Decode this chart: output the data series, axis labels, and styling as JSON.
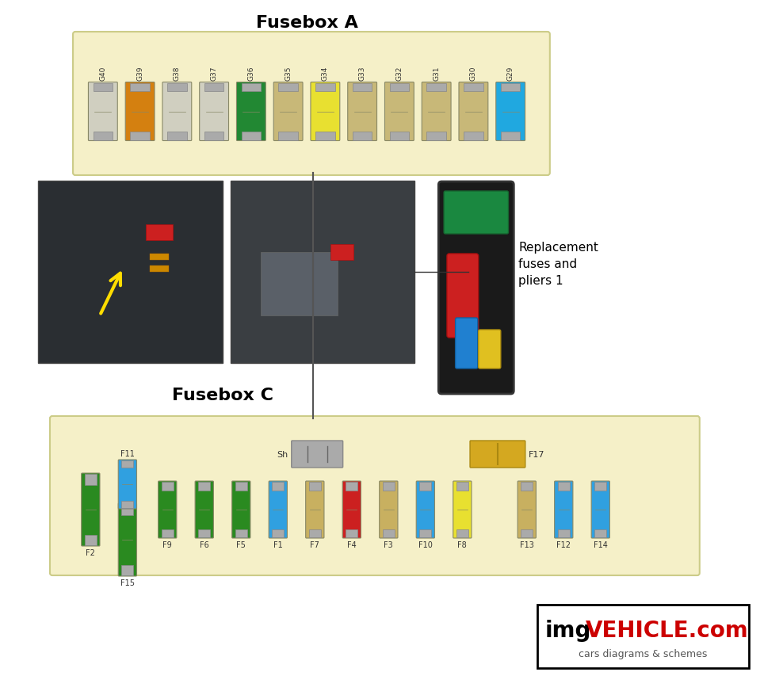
{
  "title": "Fusebox A",
  "title_fusebox_c": "Fusebox C",
  "bg_color": "#ffffff",
  "panel_bg": "#f5f0c8",
  "panel_border": "#cccc88",
  "fusebox_a_labels": [
    "G40",
    "G39",
    "G38",
    "G37",
    "G36",
    "G35",
    "G34",
    "G33",
    "G32",
    "G31",
    "G30",
    "G29"
  ],
  "fusebox_a_colors": [
    "#d0cfc0",
    "#d48010",
    "#d0cfc0",
    "#d0cfc0",
    "#228833",
    "#c8b878",
    "#e8e030",
    "#c8b878",
    "#c8b878",
    "#c8b878",
    "#c8b878",
    "#20a8e0"
  ],
  "fusebox_c_labels": [
    "F2",
    "F15",
    "F11",
    "F9",
    "F6",
    "F5",
    "F1",
    "F7",
    "F4",
    "F3",
    "F10",
    "F8",
    "F13",
    "F12",
    "F14"
  ],
  "fusebox_c_colors": [
    "#2a8a20",
    "#2a8a20",
    "#30a0e0",
    "#2a8a20",
    "#2a8a20",
    "#2a8a20",
    "#30a0e0",
    "#c8b060",
    "#cc2020",
    "#c8b060",
    "#30a0e0",
    "#e8e030",
    "#c8b060",
    "#30a0e0",
    "#30a0e0"
  ],
  "fusebox_c_sh_label": "Sh",
  "fusebox_c_f17_label": "F17",
  "watermark": "imgVEHICLE.com",
  "watermark_sub": "cars diagrams & schemes",
  "replacement_text": "Replacement\nfuses and\npliers 1"
}
